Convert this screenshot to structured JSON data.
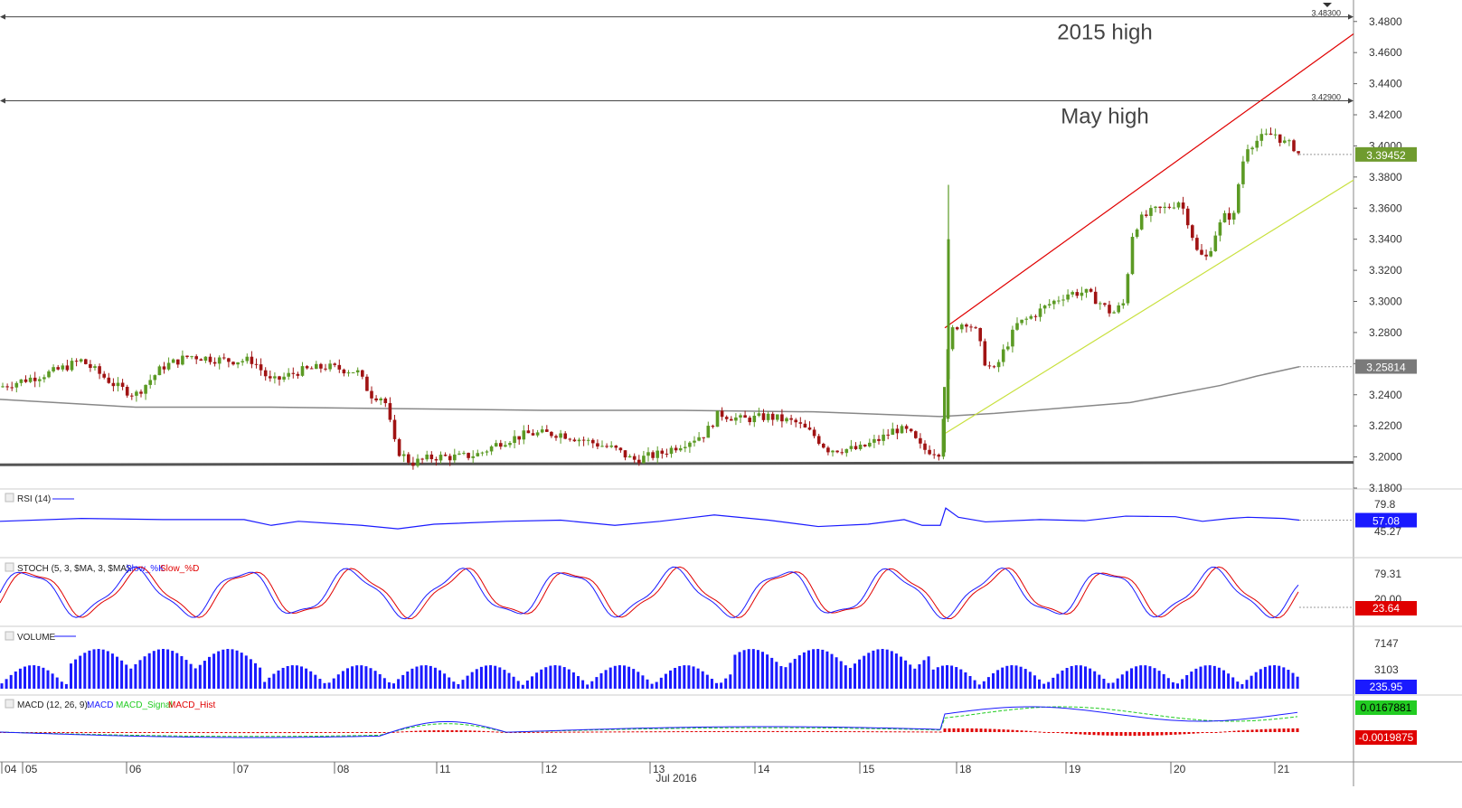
{
  "chart_data": {
    "type": "candlestick",
    "x_tick_labels": [
      "04",
      "05",
      "06",
      "07",
      "08",
      "11",
      "12",
      "13",
      "14",
      "15",
      "18",
      "19",
      "20",
      "21"
    ],
    "month_label": "Jul 2016",
    "price_axis": {
      "ticks": [
        "3.4800",
        "3.4600",
        "3.4400",
        "3.4200",
        "3.4000",
        "3.3800",
        "3.3600",
        "3.3400",
        "3.3200",
        "3.3000",
        "3.2800",
        "3.2600",
        "3.2400",
        "3.2200",
        "3.2000",
        "3.1800"
      ],
      "range": [
        3.18,
        3.488
      ]
    },
    "candles_ohlc_keypoints": [
      [
        0,
        3.245
      ],
      [
        60,
        3.255
      ],
      [
        90,
        3.262
      ],
      [
        130,
        3.245
      ],
      [
        150,
        3.24
      ],
      [
        180,
        3.258
      ],
      [
        210,
        3.265
      ],
      [
        250,
        3.262
      ],
      [
        280,
        3.262
      ],
      [
        300,
        3.248
      ],
      [
        330,
        3.255
      ],
      [
        360,
        3.258
      ],
      [
        395,
        3.255
      ],
      [
        410,
        3.24
      ],
      [
        425,
        3.238
      ],
      [
        432,
        3.22
      ],
      [
        438,
        3.205
      ],
      [
        455,
        3.196
      ],
      [
        480,
        3.2
      ],
      [
        510,
        3.2
      ],
      [
        530,
        3.202
      ],
      [
        555,
        3.21
      ],
      [
        585,
        3.215
      ],
      [
        620,
        3.215
      ],
      [
        650,
        3.21
      ],
      [
        680,
        3.205
      ],
      [
        700,
        3.198
      ],
      [
        730,
        3.202
      ],
      [
        760,
        3.21
      ],
      [
        780,
        3.215
      ],
      [
        795,
        3.228
      ],
      [
        820,
        3.224
      ],
      [
        850,
        3.226
      ],
      [
        880,
        3.222
      ],
      [
        900,
        3.214
      ],
      [
        915,
        3.205
      ],
      [
        950,
        3.205
      ],
      [
        975,
        3.212
      ],
      [
        990,
        3.218
      ],
      [
        1005,
        3.216
      ],
      [
        1020,
        3.205
      ],
      [
        1040,
        3.203
      ],
      [
        1046,
        3.245
      ],
      [
        1050,
        3.28
      ],
      [
        1060,
        3.285
      ],
      [
        1070,
        3.287
      ],
      [
        1080,
        3.28
      ],
      [
        1090,
        3.26
      ],
      [
        1100,
        3.255
      ],
      [
        1110,
        3.268
      ],
      [
        1125,
        3.285
      ],
      [
        1140,
        3.29
      ],
      [
        1160,
        3.298
      ],
      [
        1180,
        3.305
      ],
      [
        1200,
        3.306
      ],
      [
        1215,
        3.3
      ],
      [
        1230,
        3.292
      ],
      [
        1245,
        3.3
      ],
      [
        1250,
        3.34
      ],
      [
        1260,
        3.352
      ],
      [
        1275,
        3.358
      ],
      [
        1290,
        3.36
      ],
      [
        1305,
        3.365
      ],
      [
        1315,
        3.35
      ],
      [
        1325,
        3.33
      ],
      [
        1335,
        3.328
      ],
      [
        1345,
        3.345
      ],
      [
        1355,
        3.355
      ],
      [
        1365,
        3.355
      ],
      [
        1372,
        3.385
      ],
      [
        1380,
        3.4
      ],
      [
        1395,
        3.405
      ],
      [
        1410,
        3.408
      ],
      [
        1420,
        3.402
      ],
      [
        1430,
        3.4
      ],
      [
        1437,
        3.3945
      ]
    ],
    "spike_high": 3.375,
    "spike_low": 3.203,
    "levels": [
      {
        "value_label": "3.48300",
        "value": 3.483,
        "annotation": "2015 high"
      },
      {
        "value_label": "3.42900",
        "value": 3.429,
        "annotation": "May high"
      }
    ],
    "current_price": "3.39452",
    "ma_value": "3.25814",
    "channel": {
      "upper": [
        [
          1045,
          3.283
        ],
        [
          1497,
          3.472
        ]
      ],
      "lower": [
        [
          1045,
          3.215
        ],
        [
          1497,
          3.378
        ]
      ]
    },
    "support_line": [
      [
        0,
        3.195
      ],
      [
        1497,
        3.1965
      ]
    ],
    "moving_average": [
      [
        0,
        3.237
      ],
      [
        150,
        3.232
      ],
      [
        300,
        3.232
      ],
      [
        450,
        3.231
      ],
      [
        600,
        3.23
      ],
      [
        750,
        3.23
      ],
      [
        900,
        3.229
      ],
      [
        1040,
        3.226
      ],
      [
        1100,
        3.228
      ],
      [
        1250,
        3.235
      ],
      [
        1350,
        3.246
      ],
      [
        1390,
        3.252
      ],
      [
        1437,
        3.258
      ]
    ],
    "rsi": {
      "label": "RSI (14)",
      "ticks": [
        "79.8",
        "45.27"
      ],
      "last": "57.08",
      "values": [
        [
          0,
          55
        ],
        [
          90,
          60
        ],
        [
          180,
          58
        ],
        [
          270,
          58
        ],
        [
          300,
          48
        ],
        [
          330,
          55
        ],
        [
          400,
          48
        ],
        [
          440,
          42
        ],
        [
          480,
          50
        ],
        [
          560,
          55
        ],
        [
          620,
          57
        ],
        [
          680,
          48
        ],
        [
          730,
          55
        ],
        [
          790,
          66
        ],
        [
          850,
          57
        ],
        [
          905,
          46
        ],
        [
          960,
          50
        ],
        [
          1000,
          58
        ],
        [
          1020,
          48
        ],
        [
          1040,
          48
        ],
        [
          1046,
          78
        ],
        [
          1060,
          62
        ],
        [
          1090,
          54
        ],
        [
          1150,
          58
        ],
        [
          1200,
          56
        ],
        [
          1245,
          64
        ],
        [
          1300,
          63
        ],
        [
          1330,
          55
        ],
        [
          1360,
          60
        ],
        [
          1380,
          62
        ],
        [
          1420,
          60
        ],
        [
          1437,
          57
        ]
      ]
    },
    "stoch": {
      "label": "STOCH (5, 3, $MA, 3, $MA):",
      "legend": [
        {
          "name": "Slow_%K",
          "color": "#1a1aff"
        },
        {
          "name": "Slow_%D",
          "color": "#e00000"
        }
      ],
      "ticks": [
        "79.31",
        "20.00"
      ],
      "last": "23.64"
    },
    "volume": {
      "label": "VOLUME",
      "ticks": [
        "7147",
        "3103"
      ],
      "last": "235.95"
    },
    "macd": {
      "label": "MACD (12, 26, 9):",
      "legend": [
        {
          "name": "MACD",
          "color": "#1a1aff"
        },
        {
          "name": "MACD_Signal",
          "color": "#22cc22"
        },
        {
          "name": "MACD_Hist",
          "color": "#e00000"
        }
      ],
      "last_macd": "0.0167881",
      "last_hist": "-0.0019875"
    }
  },
  "colors": {
    "up": "#5b9a24",
    "down": "#a01313",
    "channel_upper": "#e00000",
    "channel_lower": "#c8e03c",
    "ma": "#888888",
    "support": "#555555",
    "rsi": "#1a1aff",
    "price_badge": "#6f9b2e",
    "ma_badge": "#7a7a7a"
  }
}
